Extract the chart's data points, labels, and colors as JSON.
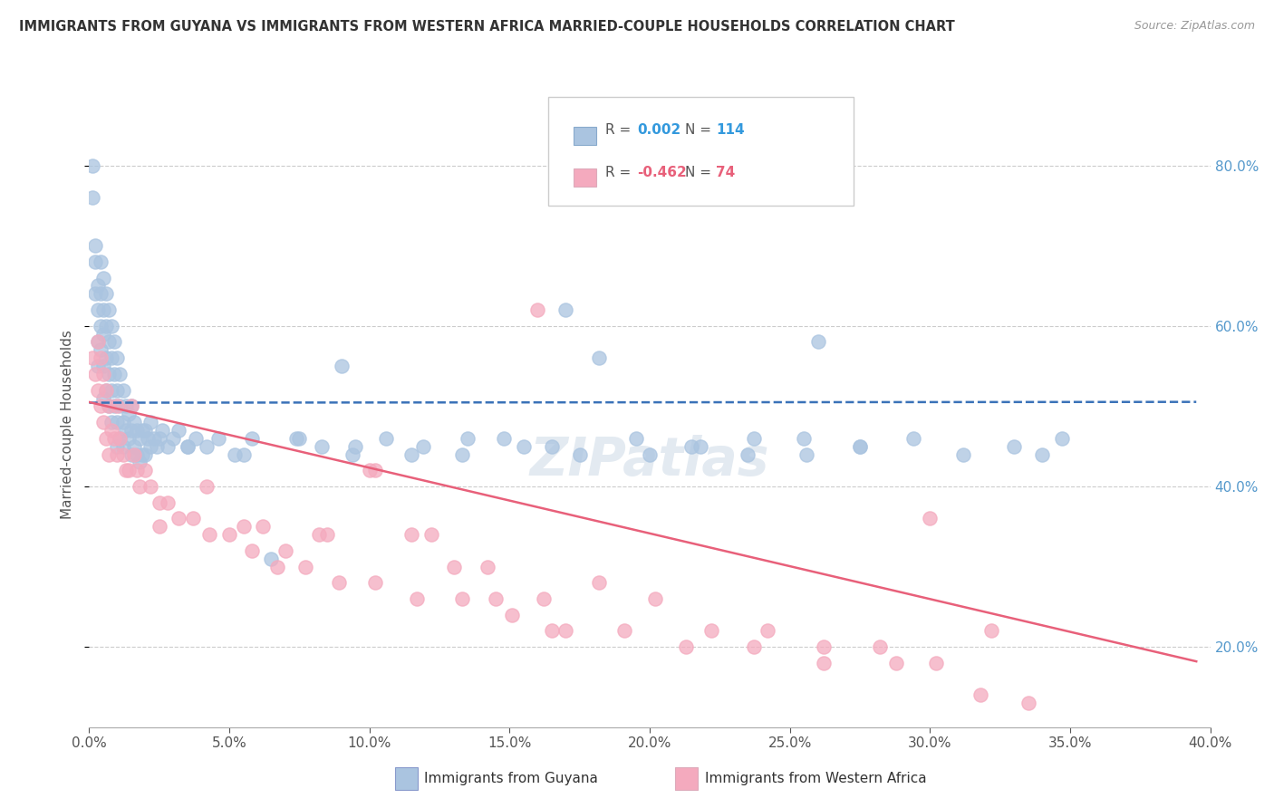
{
  "title": "IMMIGRANTS FROM GUYANA VS IMMIGRANTS FROM WESTERN AFRICA MARRIED-COUPLE HOUSEHOLDS CORRELATION CHART",
  "source": "Source: ZipAtlas.com",
  "xlabel_guyana": "Immigrants from Guyana",
  "xlabel_western_africa": "Immigrants from Western Africa",
  "ylabel": "Married-couple Households",
  "r_guyana": 0.002,
  "n_guyana": 114,
  "r_western_africa": -0.462,
  "n_western_africa": 74,
  "color_guyana": "#aac4e0",
  "color_western_africa": "#f4aabe",
  "line_color_guyana": "#3a72b8",
  "line_color_western_africa": "#e8607a",
  "legend_r_color_guyana": "#3399dd",
  "legend_r_color_wa": "#e8607a",
  "xlim": [
    0.0,
    0.4
  ],
  "ylim": [
    0.1,
    0.855
  ],
  "xticks": [
    0.0,
    0.05,
    0.1,
    0.15,
    0.2,
    0.25,
    0.3,
    0.35,
    0.4
  ],
  "yticks": [
    0.2,
    0.4,
    0.6,
    0.8
  ],
  "guyana_x": [
    0.001,
    0.001,
    0.002,
    0.002,
    0.002,
    0.003,
    0.003,
    0.003,
    0.003,
    0.004,
    0.004,
    0.004,
    0.004,
    0.005,
    0.005,
    0.005,
    0.005,
    0.005,
    0.006,
    0.006,
    0.006,
    0.006,
    0.007,
    0.007,
    0.007,
    0.007,
    0.008,
    0.008,
    0.008,
    0.008,
    0.009,
    0.009,
    0.009,
    0.01,
    0.01,
    0.01,
    0.01,
    0.011,
    0.011,
    0.011,
    0.012,
    0.012,
    0.012,
    0.013,
    0.013,
    0.014,
    0.014,
    0.015,
    0.015,
    0.015,
    0.016,
    0.016,
    0.017,
    0.017,
    0.018,
    0.018,
    0.019,
    0.019,
    0.02,
    0.02,
    0.021,
    0.022,
    0.022,
    0.023,
    0.024,
    0.025,
    0.026,
    0.028,
    0.03,
    0.032,
    0.035,
    0.038,
    0.042,
    0.046,
    0.052,
    0.058,
    0.065,
    0.074,
    0.083,
    0.094,
    0.106,
    0.119,
    0.133,
    0.148,
    0.165,
    0.182,
    0.2,
    0.218,
    0.237,
    0.256,
    0.275,
    0.294,
    0.312,
    0.33,
    0.347,
    0.035,
    0.055,
    0.075,
    0.095,
    0.115,
    0.135,
    0.155,
    0.175,
    0.195,
    0.215,
    0.235,
    0.255,
    0.275,
    0.09,
    0.17,
    0.34,
    0.26
  ],
  "guyana_y": [
    0.76,
    0.8,
    0.7,
    0.68,
    0.64,
    0.65,
    0.62,
    0.58,
    0.55,
    0.68,
    0.64,
    0.6,
    0.57,
    0.66,
    0.62,
    0.59,
    0.55,
    0.51,
    0.64,
    0.6,
    0.56,
    0.52,
    0.62,
    0.58,
    0.54,
    0.5,
    0.6,
    0.56,
    0.52,
    0.48,
    0.58,
    0.54,
    0.5,
    0.56,
    0.52,
    0.48,
    0.45,
    0.54,
    0.5,
    0.46,
    0.52,
    0.48,
    0.45,
    0.5,
    0.47,
    0.49,
    0.46,
    0.5,
    0.47,
    0.44,
    0.48,
    0.45,
    0.47,
    0.44,
    0.46,
    0.43,
    0.47,
    0.44,
    0.47,
    0.44,
    0.46,
    0.48,
    0.45,
    0.46,
    0.45,
    0.46,
    0.47,
    0.45,
    0.46,
    0.47,
    0.45,
    0.46,
    0.45,
    0.46,
    0.44,
    0.46,
    0.31,
    0.46,
    0.45,
    0.44,
    0.46,
    0.45,
    0.44,
    0.46,
    0.45,
    0.56,
    0.44,
    0.45,
    0.46,
    0.44,
    0.45,
    0.46,
    0.44,
    0.45,
    0.46,
    0.45,
    0.44,
    0.46,
    0.45,
    0.44,
    0.46,
    0.45,
    0.44,
    0.46,
    0.45,
    0.44,
    0.46,
    0.45,
    0.55,
    0.62,
    0.44,
    0.58
  ],
  "wa_x": [
    0.001,
    0.002,
    0.003,
    0.003,
    0.004,
    0.004,
    0.005,
    0.005,
    0.006,
    0.006,
    0.007,
    0.007,
    0.008,
    0.009,
    0.01,
    0.01,
    0.011,
    0.012,
    0.013,
    0.014,
    0.015,
    0.016,
    0.017,
    0.018,
    0.02,
    0.022,
    0.025,
    0.028,
    0.032,
    0.037,
    0.043,
    0.05,
    0.058,
    0.067,
    0.077,
    0.089,
    0.102,
    0.117,
    0.133,
    0.151,
    0.17,
    0.191,
    0.213,
    0.237,
    0.262,
    0.288,
    0.062,
    0.082,
    0.102,
    0.122,
    0.142,
    0.162,
    0.182,
    0.202,
    0.222,
    0.242,
    0.262,
    0.282,
    0.302,
    0.322,
    0.042,
    0.055,
    0.07,
    0.085,
    0.1,
    0.115,
    0.13,
    0.145,
    0.16,
    0.3,
    0.025,
    0.165,
    0.318,
    0.335
  ],
  "wa_y": [
    0.56,
    0.54,
    0.58,
    0.52,
    0.56,
    0.5,
    0.54,
    0.48,
    0.52,
    0.46,
    0.5,
    0.44,
    0.47,
    0.46,
    0.5,
    0.44,
    0.46,
    0.44,
    0.42,
    0.42,
    0.5,
    0.44,
    0.42,
    0.4,
    0.42,
    0.4,
    0.38,
    0.38,
    0.36,
    0.36,
    0.34,
    0.34,
    0.32,
    0.3,
    0.3,
    0.28,
    0.28,
    0.26,
    0.26,
    0.24,
    0.22,
    0.22,
    0.2,
    0.2,
    0.18,
    0.18,
    0.35,
    0.34,
    0.42,
    0.34,
    0.3,
    0.26,
    0.28,
    0.26,
    0.22,
    0.22,
    0.2,
    0.2,
    0.18,
    0.22,
    0.4,
    0.35,
    0.32,
    0.34,
    0.42,
    0.34,
    0.3,
    0.26,
    0.62,
    0.36,
    0.35,
    0.22,
    0.14,
    0.13
  ]
}
